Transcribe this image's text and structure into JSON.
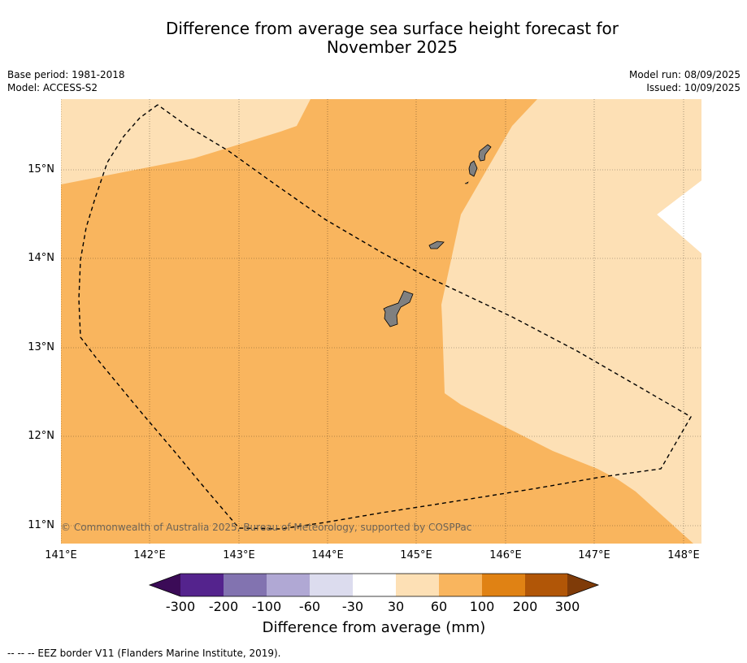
{
  "title_line1": "Difference from average sea surface height forecast for",
  "title_line2": "November 2025",
  "base_period": "Base period: 1981-2018",
  "model": "Model: ACCESS-S2",
  "model_run": "Model run: 08/09/2025",
  "issued": "Issued: 10/09/2025",
  "copyright": "© Commonwealth of Australia 2025, Bureau of Meteorology, supported by COSPPac",
  "lat_labels": [
    "15°N",
    "14°N",
    "13°N",
    "12°N",
    "11°N"
  ],
  "lon_labels": [
    "141°E",
    "142°E",
    "143°E",
    "144°E",
    "145°E",
    "146°E",
    "147°E",
    "148°E"
  ],
  "colorbar": {
    "ticks": [
      "-300",
      "-200",
      "-100",
      "-60",
      "-30",
      "30",
      "60",
      "100",
      "200",
      "300"
    ],
    "colors": [
      "#3b0b57",
      "#54238d",
      "#8273b0",
      "#b0a8d4",
      "#dcdcee",
      "#ffffff",
      "#fde0b5",
      "#f9b55e",
      "#e08214",
      "#b15607",
      "#7f3b08"
    ],
    "label": "Difference from average (mm)"
  },
  "legend_footer": "--  --  -- EEZ border V11 (Flanders Marine Institute, 2019).",
  "map": {
    "colors": {
      "band_30_60": "#fde0b5",
      "band_60_100": "#f9b55e",
      "land": "#808080",
      "eez_border": "#000000"
    }
  }
}
